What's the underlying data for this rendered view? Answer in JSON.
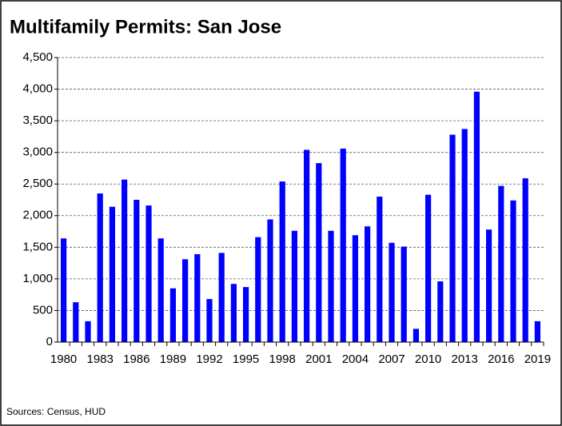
{
  "chart_data": {
    "type": "bar",
    "title": "Multifamily Permits: San Jose",
    "source": "Sources: Census, HUD",
    "categories": [
      "1980",
      null,
      null,
      "1983",
      null,
      null,
      "1986",
      null,
      null,
      "1989",
      null,
      null,
      "1992",
      null,
      null,
      "1995",
      null,
      null,
      "1998",
      null,
      null,
      "2001",
      null,
      null,
      "2004",
      null,
      null,
      "2007",
      null,
      null,
      "2010",
      null,
      null,
      "2013",
      null,
      null,
      "2016",
      null,
      null,
      "2019"
    ],
    "values": [
      1640,
      630,
      330,
      2350,
      2140,
      2570,
      2250,
      2160,
      1640,
      850,
      1310,
      1390,
      680,
      1410,
      920,
      870,
      1660,
      1940,
      2540,
      1760,
      3040,
      2830,
      1760,
      3060,
      1690,
      1830,
      2300,
      1570,
      1510,
      210,
      2330,
      960,
      3280,
      3370,
      3960,
      1780,
      2470,
      2240,
      2590,
      330
    ],
    "color": "#0000ff",
    "ylim": [
      0,
      4500
    ],
    "yticks": [
      0,
      500,
      {
        "value": 1000,
        "label": "1,000"
      },
      {
        "value": 1500,
        "label": "1,500"
      },
      {
        "value": 2000,
        "label": "2,000"
      },
      {
        "value": 2500,
        "label": "2,500"
      },
      {
        "value": 3000,
        "label": "3,000"
      },
      {
        "value": 3500,
        "label": "3,500"
      },
      {
        "value": 4000,
        "label": "4,000"
      },
      {
        "value": 4500,
        "label": "4,500"
      }
    ],
    "grid": true
  }
}
